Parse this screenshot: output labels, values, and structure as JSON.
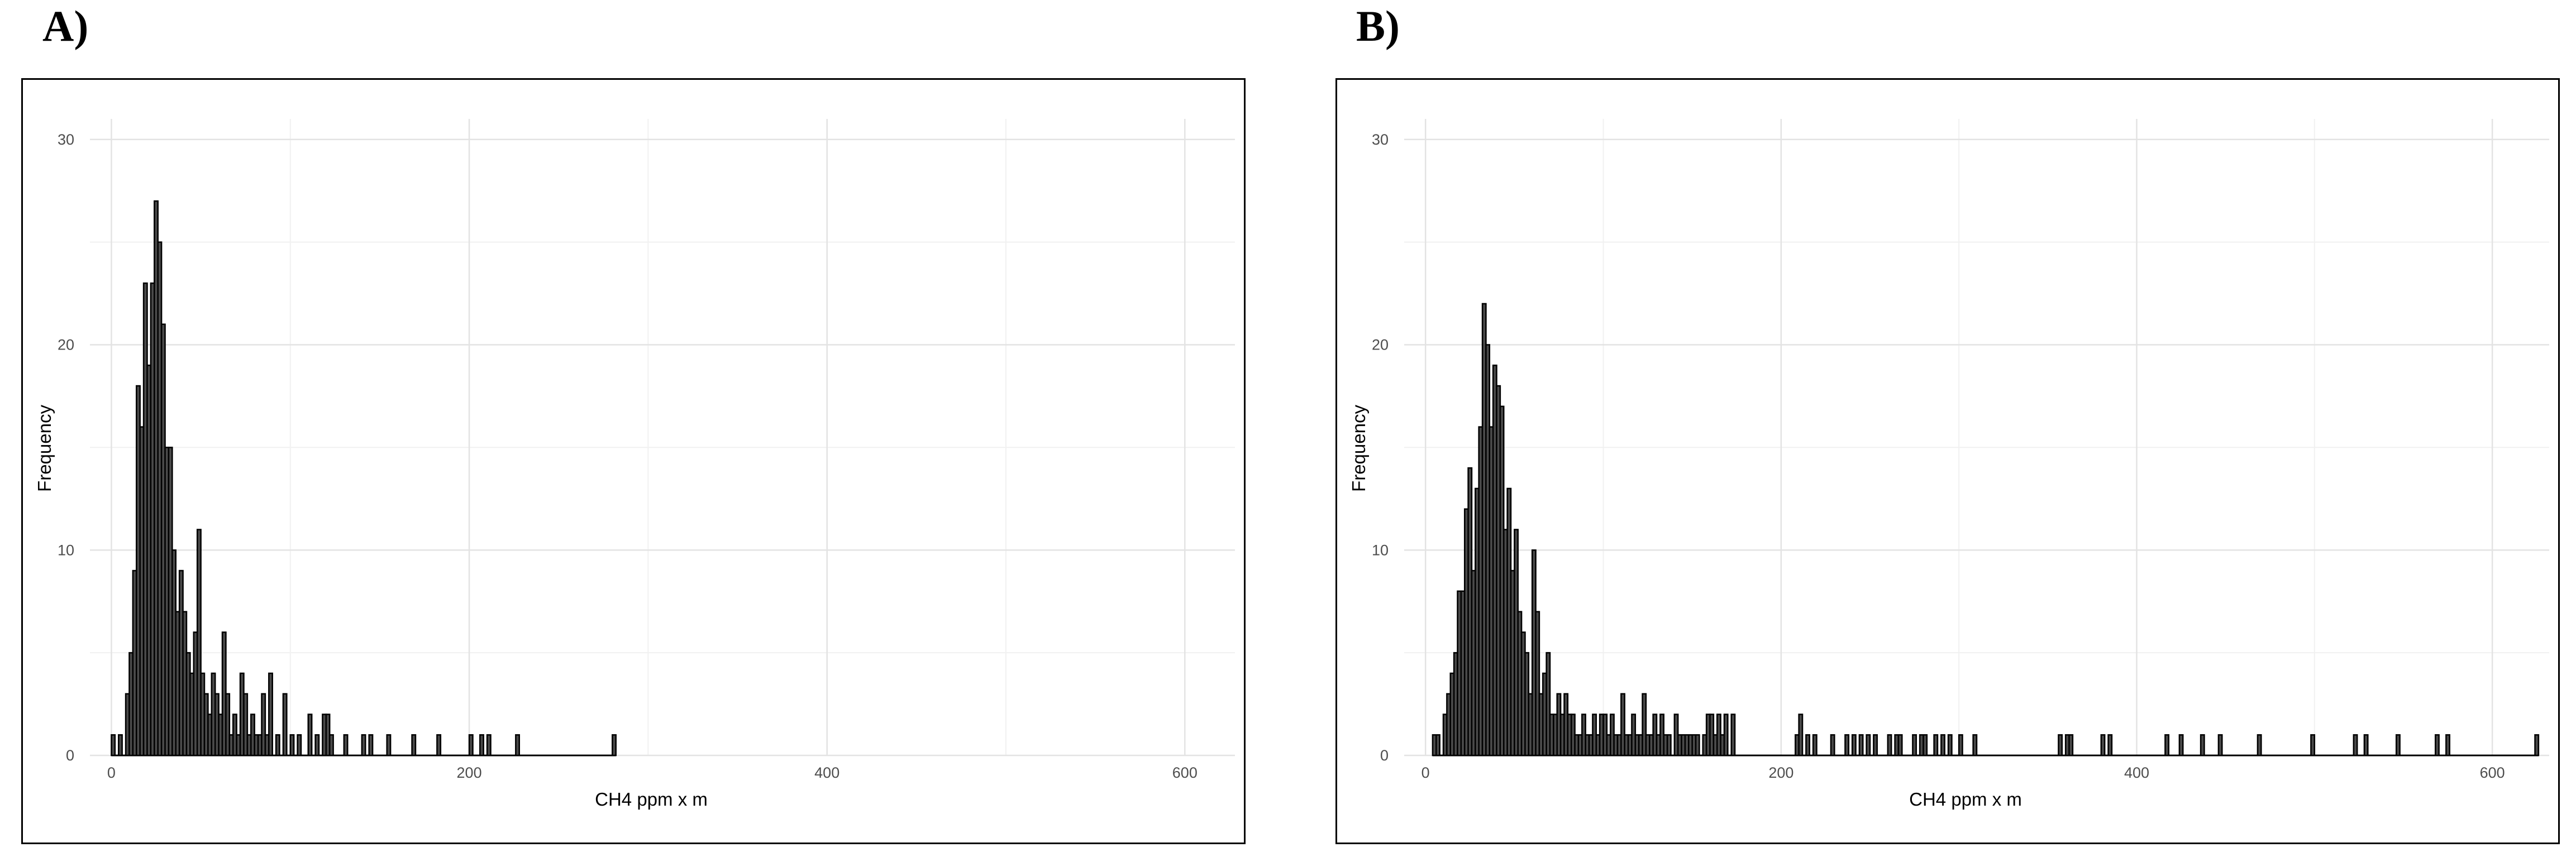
{
  "chart_data": [
    {
      "type": "bar",
      "panel_label": "A)",
      "xlabel": "CH4 ppm x m",
      "ylabel": "Frequency",
      "xlim": [
        -12,
        628
      ],
      "ylim": [
        0,
        31
      ],
      "xticks": [
        0,
        200,
        400,
        600
      ],
      "yticks": [
        0,
        10,
        20,
        30
      ],
      "binwidth": 2,
      "grid": true,
      "bars_color": "#4a4a4a",
      "bars": [
        [
          1,
          1
        ],
        [
          5,
          1
        ],
        [
          9,
          3
        ],
        [
          11,
          5
        ],
        [
          13,
          9
        ],
        [
          15,
          18
        ],
        [
          17,
          16
        ],
        [
          19,
          23
        ],
        [
          21,
          19
        ],
        [
          23,
          23
        ],
        [
          25,
          27
        ],
        [
          27,
          25
        ],
        [
          29,
          21
        ],
        [
          31,
          15
        ],
        [
          33,
          15
        ],
        [
          35,
          10
        ],
        [
          37,
          7
        ],
        [
          39,
          9
        ],
        [
          41,
          7
        ],
        [
          43,
          5
        ],
        [
          45,
          4
        ],
        [
          47,
          6
        ],
        [
          49,
          11
        ],
        [
          51,
          4
        ],
        [
          53,
          3
        ],
        [
          55,
          2
        ],
        [
          57,
          4
        ],
        [
          59,
          3
        ],
        [
          61,
          2
        ],
        [
          63,
          6
        ],
        [
          65,
          3
        ],
        [
          67,
          1
        ],
        [
          69,
          2
        ],
        [
          71,
          1
        ],
        [
          73,
          4
        ],
        [
          75,
          3
        ],
        [
          77,
          1
        ],
        [
          79,
          2
        ],
        [
          81,
          1
        ],
        [
          83,
          1
        ],
        [
          85,
          3
        ],
        [
          87,
          1
        ],
        [
          89,
          4
        ],
        [
          93,
          1
        ],
        [
          97,
          3
        ],
        [
          101,
          1
        ],
        [
          105,
          1
        ],
        [
          111,
          2
        ],
        [
          115,
          1
        ],
        [
          119,
          2
        ],
        [
          121,
          2
        ],
        [
          123,
          1
        ],
        [
          131,
          1
        ],
        [
          141,
          1
        ],
        [
          145,
          1
        ],
        [
          155,
          1
        ],
        [
          169,
          1
        ],
        [
          183,
          1
        ],
        [
          201,
          1
        ],
        [
          207,
          1
        ],
        [
          211,
          1
        ],
        [
          227,
          1
        ],
        [
          281,
          1
        ]
      ]
    },
    {
      "type": "bar",
      "panel_label": "B)",
      "xlabel": "CH4 ppm x m",
      "ylabel": "Frequency",
      "xlim": [
        -12,
        632
      ],
      "ylim": [
        0,
        31
      ],
      "xticks": [
        0,
        200,
        400,
        600
      ],
      "yticks": [
        0,
        10,
        20,
        30
      ],
      "binwidth": 2,
      "grid": true,
      "bars_color": "#4a4a4a",
      "bars": [
        [
          5,
          1
        ],
        [
          7,
          1
        ],
        [
          11,
          2
        ],
        [
          13,
          3
        ],
        [
          15,
          4
        ],
        [
          17,
          5
        ],
        [
          19,
          8
        ],
        [
          21,
          8
        ],
        [
          23,
          12
        ],
        [
          25,
          14
        ],
        [
          27,
          9
        ],
        [
          29,
          13
        ],
        [
          31,
          16
        ],
        [
          33,
          22
        ],
        [
          35,
          20
        ],
        [
          37,
          16
        ],
        [
          39,
          19
        ],
        [
          41,
          18
        ],
        [
          43,
          17
        ],
        [
          45,
          11
        ],
        [
          47,
          13
        ],
        [
          49,
          9
        ],
        [
          51,
          11
        ],
        [
          53,
          7
        ],
        [
          55,
          6
        ],
        [
          57,
          5
        ],
        [
          59,
          3
        ],
        [
          61,
          10
        ],
        [
          63,
          7
        ],
        [
          65,
          3
        ],
        [
          67,
          4
        ],
        [
          69,
          5
        ],
        [
          71,
          2
        ],
        [
          73,
          2
        ],
        [
          75,
          3
        ],
        [
          77,
          2
        ],
        [
          79,
          3
        ],
        [
          81,
          2
        ],
        [
          83,
          2
        ],
        [
          85,
          1
        ],
        [
          87,
          1
        ],
        [
          89,
          2
        ],
        [
          91,
          1
        ],
        [
          93,
          1
        ],
        [
          95,
          2
        ],
        [
          97,
          1
        ],
        [
          99,
          2
        ],
        [
          101,
          2
        ],
        [
          103,
          1
        ],
        [
          105,
          2
        ],
        [
          107,
          1
        ],
        [
          109,
          1
        ],
        [
          111,
          3
        ],
        [
          113,
          1
        ],
        [
          115,
          1
        ],
        [
          117,
          2
        ],
        [
          119,
          1
        ],
        [
          121,
          1
        ],
        [
          123,
          3
        ],
        [
          125,
          1
        ],
        [
          127,
          1
        ],
        [
          129,
          2
        ],
        [
          131,
          1
        ],
        [
          133,
          2
        ],
        [
          135,
          1
        ],
        [
          137,
          1
        ],
        [
          141,
          2
        ],
        [
          143,
          1
        ],
        [
          145,
          1
        ],
        [
          147,
          1
        ],
        [
          149,
          1
        ],
        [
          151,
          1
        ],
        [
          153,
          1
        ],
        [
          157,
          1
        ],
        [
          159,
          2
        ],
        [
          161,
          2
        ],
        [
          163,
          1
        ],
        [
          165,
          2
        ],
        [
          167,
          1
        ],
        [
          169,
          2
        ],
        [
          173,
          2
        ],
        [
          209,
          1
        ],
        [
          211,
          2
        ],
        [
          215,
          1
        ],
        [
          219,
          1
        ],
        [
          229,
          1
        ],
        [
          237,
          1
        ],
        [
          241,
          1
        ],
        [
          245,
          1
        ],
        [
          249,
          1
        ],
        [
          253,
          1
        ],
        [
          261,
          1
        ],
        [
          265,
          1
        ],
        [
          267,
          1
        ],
        [
          275,
          1
        ],
        [
          279,
          1
        ],
        [
          281,
          1
        ],
        [
          287,
          1
        ],
        [
          291,
          1
        ],
        [
          295,
          1
        ],
        [
          301,
          1
        ],
        [
          309,
          1
        ],
        [
          357,
          1
        ],
        [
          361,
          1
        ],
        [
          363,
          1
        ],
        [
          381,
          1
        ],
        [
          385,
          1
        ],
        [
          417,
          1
        ],
        [
          425,
          1
        ],
        [
          437,
          1
        ],
        [
          447,
          1
        ],
        [
          469,
          1
        ],
        [
          499,
          1
        ],
        [
          523,
          1
        ],
        [
          529,
          1
        ],
        [
          547,
          1
        ],
        [
          569,
          1
        ],
        [
          575,
          1
        ],
        [
          625,
          1
        ]
      ]
    }
  ]
}
